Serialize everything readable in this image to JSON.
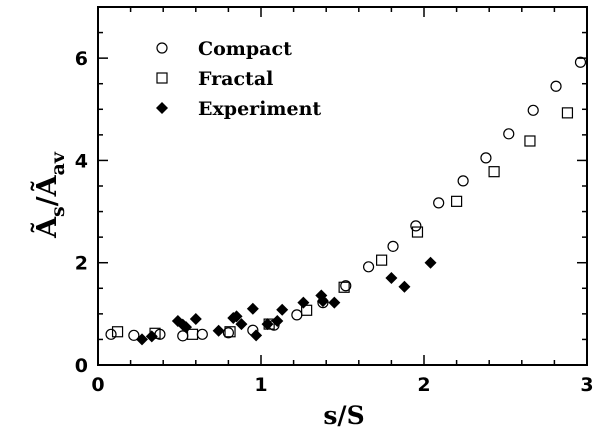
{
  "chart_data": {
    "type": "scatter",
    "xlabel": "s/S",
    "ylabel": {
      "main": "Ã",
      "sub1": "s",
      "slash": "/",
      "main2": "Ã",
      "sub2": "av"
    },
    "xlim": [
      0,
      3
    ],
    "ylim": [
      0,
      7
    ],
    "xticks": [
      0,
      1,
      2,
      3
    ],
    "yticks": [
      0,
      2,
      4,
      6
    ],
    "grid": false,
    "legend_position": "top-left",
    "series": [
      {
        "name": "Compact",
        "marker": "open-circle",
        "color": "#000000",
        "points": [
          [
            0.08,
            0.6
          ],
          [
            0.22,
            0.58
          ],
          [
            0.38,
            0.6
          ],
          [
            0.52,
            0.57
          ],
          [
            0.64,
            0.6
          ],
          [
            0.8,
            0.63
          ],
          [
            0.95,
            0.68
          ],
          [
            1.08,
            0.78
          ],
          [
            1.22,
            0.98
          ],
          [
            1.38,
            1.22
          ],
          [
            1.52,
            1.55
          ],
          [
            1.66,
            1.92
          ],
          [
            1.81,
            2.32
          ],
          [
            1.95,
            2.72
          ],
          [
            2.09,
            3.17
          ],
          [
            2.24,
            3.6
          ],
          [
            2.38,
            4.05
          ],
          [
            2.52,
            4.52
          ],
          [
            2.67,
            4.98
          ],
          [
            2.81,
            5.45
          ],
          [
            2.96,
            5.92
          ]
        ]
      },
      {
        "name": "Fractal",
        "marker": "open-square",
        "color": "#000000",
        "points": [
          [
            0.12,
            0.65
          ],
          [
            0.35,
            0.62
          ],
          [
            0.58,
            0.6
          ],
          [
            0.81,
            0.65
          ],
          [
            1.05,
            0.8
          ],
          [
            1.28,
            1.07
          ],
          [
            1.51,
            1.52
          ],
          [
            1.74,
            2.05
          ],
          [
            1.96,
            2.6
          ],
          [
            2.2,
            3.2
          ],
          [
            2.43,
            3.78
          ],
          [
            2.65,
            4.38
          ],
          [
            2.88,
            4.93
          ]
        ]
      },
      {
        "name": "Experiment",
        "marker": "filled-diamond",
        "color": "#000000",
        "points": [
          [
            0.27,
            0.5
          ],
          [
            0.33,
            0.56
          ],
          [
            0.49,
            0.86
          ],
          [
            0.52,
            0.79
          ],
          [
            0.54,
            0.74
          ],
          [
            0.6,
            0.9
          ],
          [
            0.74,
            0.67
          ],
          [
            0.83,
            0.92
          ],
          [
            0.85,
            0.95
          ],
          [
            0.88,
            0.8
          ],
          [
            0.95,
            1.1
          ],
          [
            0.97,
            0.58
          ],
          [
            1.04,
            0.8
          ],
          [
            1.1,
            0.86
          ],
          [
            1.13,
            1.08
          ],
          [
            1.26,
            1.22
          ],
          [
            1.37,
            1.36
          ],
          [
            1.38,
            1.25
          ],
          [
            1.45,
            1.22
          ],
          [
            1.8,
            1.7
          ],
          [
            1.88,
            1.53
          ],
          [
            2.04,
            2.0
          ]
        ]
      }
    ]
  }
}
